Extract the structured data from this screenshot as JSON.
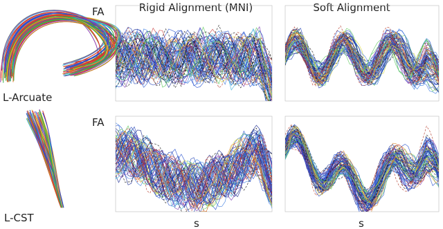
{
  "column_titles": [
    "Rigid Alignment (MNI)",
    "Soft Alignment"
  ],
  "rows": [
    {
      "tract": "L-Arcuate",
      "y_label": "FA"
    },
    {
      "tract": "L-CST",
      "y_label": "FA"
    }
  ],
  "x_labels": [
    "s",
    "s"
  ]
}
